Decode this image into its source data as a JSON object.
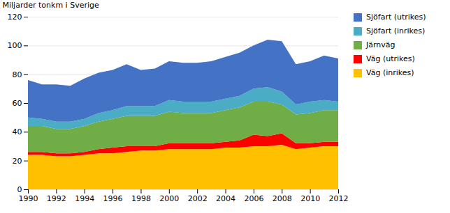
{
  "chart_data": {
    "type": "area",
    "stacked": true,
    "x": [
      1990,
      1991,
      1992,
      1993,
      1994,
      1995,
      1996,
      1997,
      1998,
      1999,
      2000,
      2001,
      2002,
      2003,
      2004,
      2005,
      2006,
      2007,
      2008,
      2009,
      2010,
      2011,
      2012
    ],
    "xlim": [
      1990,
      2012
    ],
    "xticks": [
      1990,
      1992,
      1994,
      1996,
      1998,
      2000,
      2002,
      2004,
      2006,
      2008,
      2010,
      2012
    ],
    "ylabel": "Miljarder tonkm i Sverige",
    "ylim": [
      0,
      120
    ],
    "yticks": [
      0,
      20,
      40,
      60,
      80,
      100,
      120
    ],
    "grid": true,
    "legend": "right",
    "series": [
      {
        "name": "Väg (inrikes)",
        "color": "#FFC000",
        "values": [
          24,
          24,
          23,
          23,
          24,
          25,
          25,
          26,
          27,
          27,
          28,
          28,
          28,
          28,
          29,
          29,
          30,
          30,
          31,
          28,
          29,
          30,
          30
        ]
      },
      {
        "name": "Väg (utrikes)",
        "color": "#FF0000",
        "values": [
          2,
          2,
          2,
          2,
          2,
          3,
          4,
          4,
          3,
          3,
          4,
          4,
          4,
          4,
          4,
          5,
          8,
          7,
          8,
          4,
          3,
          3,
          3
        ]
      },
      {
        "name": "Järnväg",
        "color": "#70AD47",
        "values": [
          18,
          18,
          17,
          17,
          18,
          19,
          20,
          21,
          21,
          21,
          22,
          21,
          21,
          21,
          22,
          23,
          23,
          24,
          20,
          20,
          21,
          22,
          22
        ]
      },
      {
        "name": "Sjöfart (inrikes)",
        "color": "#4BACC6",
        "values": [
          6,
          5,
          5,
          5,
          5,
          6,
          6,
          7,
          7,
          7,
          8,
          8,
          8,
          8,
          8,
          8,
          9,
          10,
          9,
          7,
          8,
          7,
          6
        ]
      },
      {
        "name": "Sjöfart (utrikes)",
        "color": "#4472C4",
        "values": [
          26,
          24,
          26,
          25,
          28,
          28,
          28,
          29,
          25,
          26,
          27,
          27,
          27,
          28,
          29,
          30,
          30,
          33,
          35,
          28,
          28,
          31,
          30
        ]
      }
    ]
  }
}
